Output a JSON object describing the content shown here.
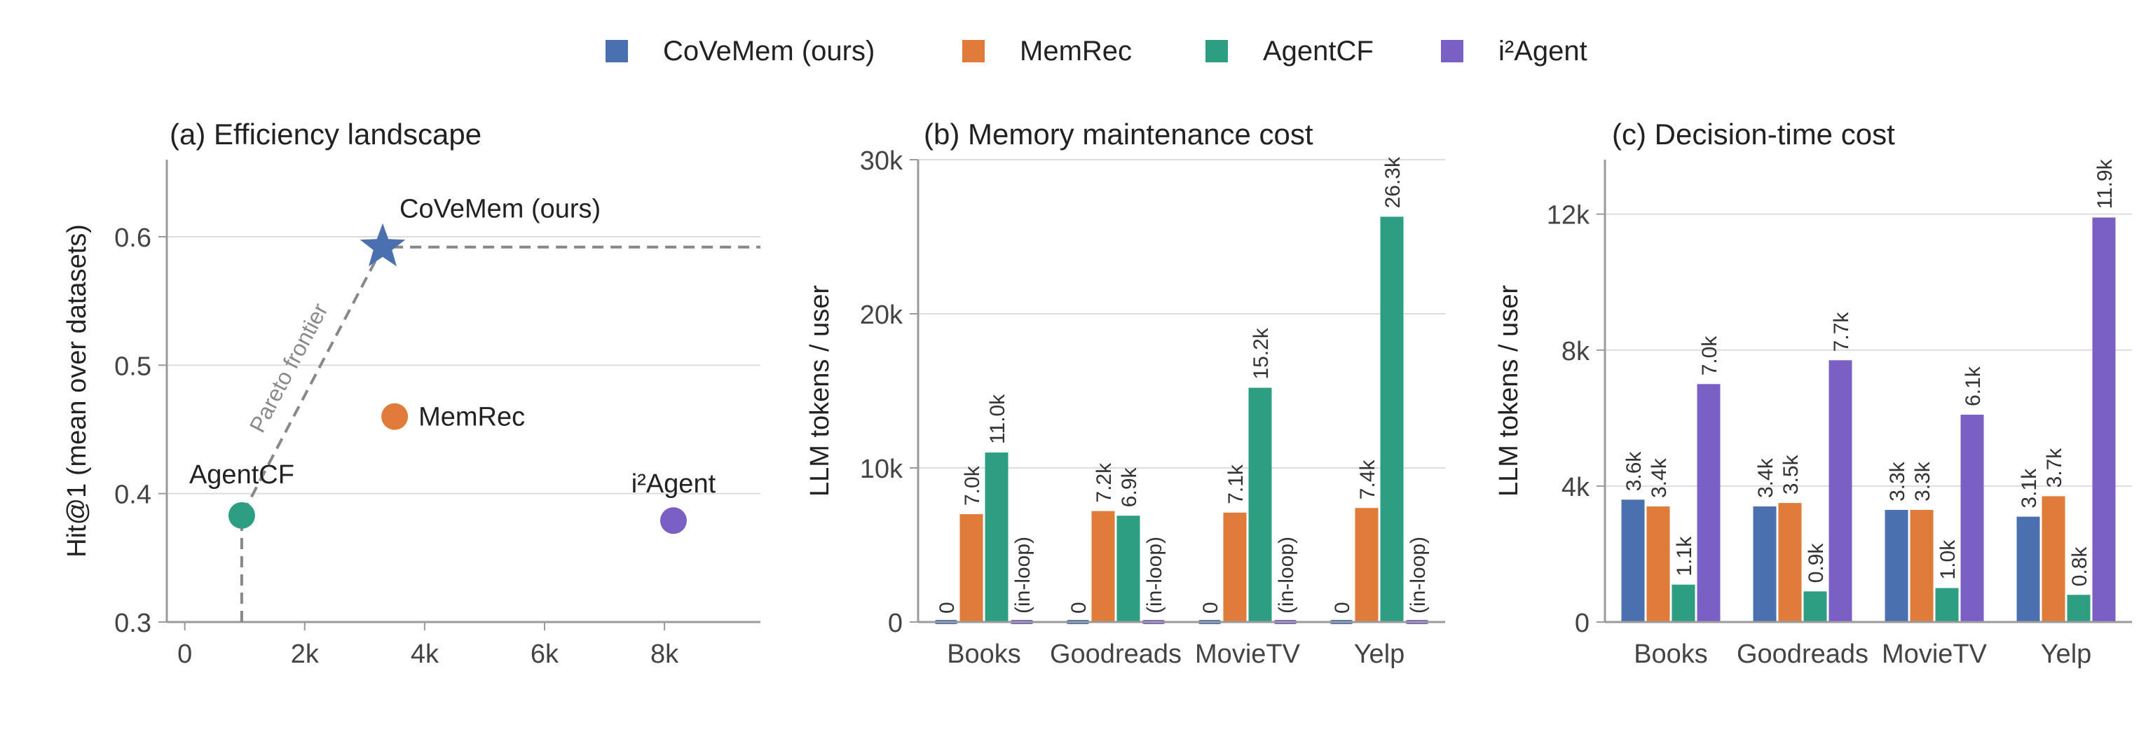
{
  "legend": [
    {
      "name": "CoVeMem (ours)",
      "color": "#4a70b0"
    },
    {
      "name": "MemRec",
      "color": "#e07b39"
    },
    {
      "name": "AgentCF",
      "color": "#2e9e82"
    },
    {
      "name": "i²Agent",
      "color": "#7a5fc4"
    }
  ],
  "chart_data": [
    {
      "id": "a",
      "type": "scatter",
      "title": "(a) Efficiency landscape",
      "xlabel": "",
      "ylabel": "Hit@1 (mean over datasets)",
      "xlim": [
        -300,
        9600
      ],
      "ylim": [
        0.3,
        0.66
      ],
      "xticks": [
        0,
        2000,
        4000,
        6000,
        8000
      ],
      "xtick_labels": [
        "0",
        "2k",
        "4k",
        "6k",
        "8k"
      ],
      "yticks": [
        0.3,
        0.4,
        0.5,
        0.6
      ],
      "ytick_labels": [
        "0.3",
        "0.4",
        "0.5",
        "0.6"
      ],
      "points": [
        {
          "label": "CoVeMem (ours)",
          "x": 3300,
          "y": 0.592,
          "marker": "star",
          "color": "#4a70b0"
        },
        {
          "label": "MemRec",
          "x": 3500,
          "y": 0.46,
          "marker": "circle",
          "color": "#e07b39"
        },
        {
          "label": "AgentCF",
          "x": 950,
          "y": 0.383,
          "marker": "circle",
          "color": "#2e9e82"
        },
        {
          "label": "i²Agent",
          "x": 8150,
          "y": 0.379,
          "marker": "circle",
          "color": "#7a5fc4"
        }
      ],
      "frontier": {
        "label": "Pareto frontier",
        "points": [
          [
            950,
            0.3
          ],
          [
            950,
            0.383
          ],
          [
            3300,
            0.592
          ],
          [
            9600,
            0.592
          ]
        ]
      },
      "grid": "horizontal"
    },
    {
      "id": "b",
      "type": "bar",
      "title": "(b) Memory maintenance cost",
      "xlabel": "",
      "ylabel": "LLM tokens / user",
      "ylim": [
        0,
        30000
      ],
      "yticks": [
        0,
        10000,
        20000,
        30000
      ],
      "ytick_labels": [
        "0",
        "10k",
        "20k",
        "30k"
      ],
      "categories": [
        "Books",
        "Goodreads",
        "MovieTV",
        "Yelp"
      ],
      "series": [
        {
          "name": "CoVeMem (ours)",
          "color": "#4a70b0",
          "values": [
            0,
            0,
            0,
            0
          ],
          "labels": [
            "0",
            "0",
            "0",
            "0"
          ]
        },
        {
          "name": "MemRec",
          "color": "#e07b39",
          "values": [
            7000,
            7200,
            7100,
            7400
          ],
          "labels": [
            "7.0k",
            "7.2k",
            "7.1k",
            "7.4k"
          ]
        },
        {
          "name": "AgentCF",
          "color": "#2e9e82",
          "values": [
            11000,
            6900,
            15200,
            26300
          ],
          "labels": [
            "11.0k",
            "6.9k",
            "15.2k",
            "26.3k"
          ]
        },
        {
          "name": "i²Agent",
          "color": "#7a5fc4",
          "values": [
            0,
            0,
            0,
            0
          ],
          "labels": [
            "(in-loop)",
            "(in-loop)",
            "(in-loop)",
            "(in-loop)"
          ]
        }
      ],
      "grid": "horizontal"
    },
    {
      "id": "c",
      "type": "bar",
      "title": "(c) Decision-time cost",
      "xlabel": "",
      "ylabel": "LLM tokens / user",
      "ylim": [
        0,
        13600
      ],
      "yticks": [
        0,
        4000,
        8000,
        12000
      ],
      "ytick_labels": [
        "0",
        "4k",
        "8k",
        "12k"
      ],
      "categories": [
        "Books",
        "Goodreads",
        "MovieTV",
        "Yelp"
      ],
      "series": [
        {
          "name": "CoVeMem (ours)",
          "color": "#4a70b0",
          "values": [
            3600,
            3400,
            3300,
            3100
          ],
          "labels": [
            "3.6k",
            "3.4k",
            "3.3k",
            "3.1k"
          ]
        },
        {
          "name": "MemRec",
          "color": "#e07b39",
          "values": [
            3400,
            3500,
            3300,
            3700
          ],
          "labels": [
            "3.4k",
            "3.5k",
            "3.3k",
            "3.7k"
          ]
        },
        {
          "name": "AgentCF",
          "color": "#2e9e82",
          "values": [
            1100,
            900,
            1000,
            800
          ],
          "labels": [
            "1.1k",
            "0.9k",
            "1.0k",
            "0.8k"
          ]
        },
        {
          "name": "i²Agent",
          "color": "#7a5fc4",
          "values": [
            7000,
            7700,
            6100,
            11900
          ],
          "labels": [
            "7.0k",
            "7.7k",
            "6.1k",
            "11.9k"
          ]
        }
      ],
      "grid": "horizontal"
    }
  ]
}
